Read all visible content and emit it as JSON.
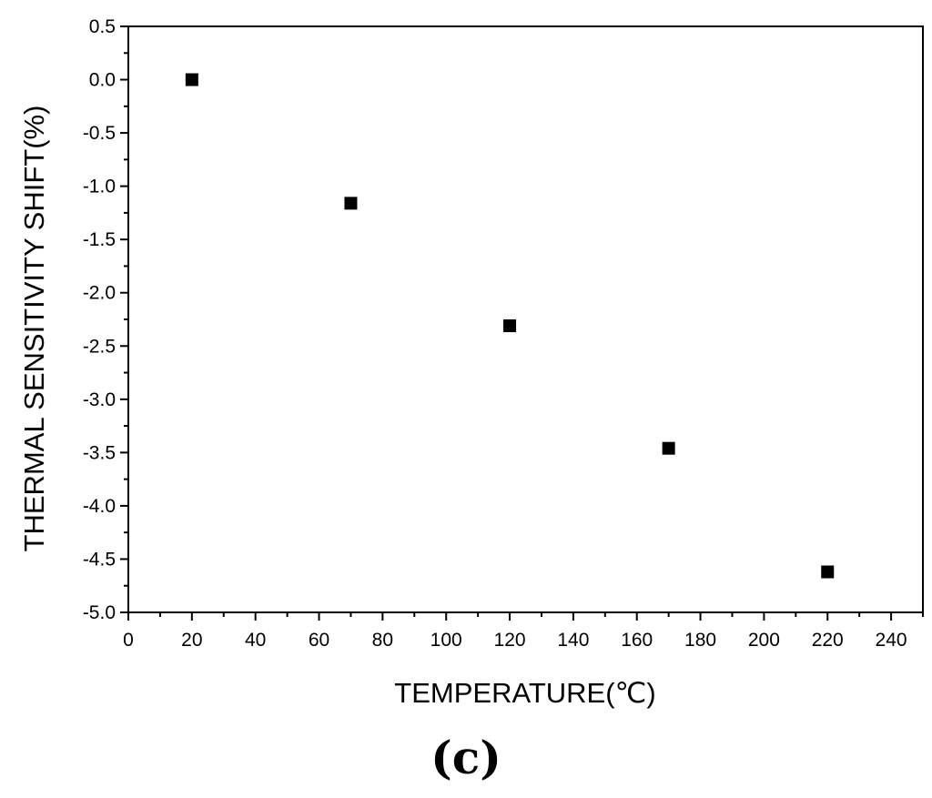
{
  "chart_data": {
    "type": "scatter",
    "xlabel": "TEMPERATURE(℃)",
    "ylabel": "THERMAL SENSITIVITY SHIFT(%)",
    "panel_label": "(c)",
    "xlim": [
      0,
      250
    ],
    "ylim": [
      -5.0,
      0.5
    ],
    "x_ticks": [
      0,
      20,
      40,
      60,
      80,
      100,
      120,
      140,
      160,
      180,
      200,
      220,
      240
    ],
    "y_ticks": [
      "0.5",
      "0.0",
      "-0.5",
      "-1.0",
      "-1.5",
      "-2.0",
      "-2.5",
      "-3.0",
      "-3.5",
      "-4.0",
      "-4.5",
      "-5.0"
    ],
    "grid": false,
    "marker": "square",
    "marker_color": "#000000",
    "series": [
      {
        "x": [
          20,
          70,
          120,
          170,
          220
        ],
        "y": [
          0.0,
          -1.16,
          -2.31,
          -3.46,
          -4.62
        ]
      }
    ]
  }
}
